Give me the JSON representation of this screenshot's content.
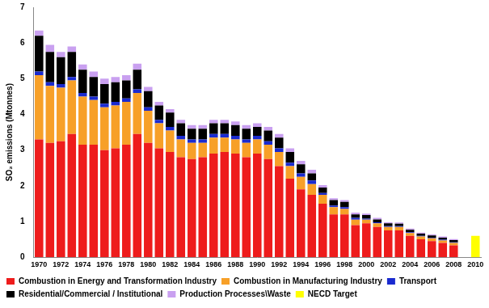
{
  "chart_data": {
    "type": "bar",
    "y_label": "SO₂ emissions (Mtonnes)",
    "categories": [
      "1970",
      null,
      "1972",
      null,
      "1974",
      null,
      "1976",
      null,
      "1978",
      null,
      "1980",
      null,
      "1982",
      null,
      "1984",
      null,
      "1986",
      null,
      "1988",
      null,
      "1990",
      null,
      "1992",
      null,
      "1994",
      null,
      "1996",
      null,
      "1998",
      null,
      "2000",
      null,
      "2002",
      null,
      "2004",
      null,
      "2006",
      null,
      "2008",
      null,
      "2010"
    ],
    "series": [
      {
        "name": "Combustion in Energy and Transformation Industry",
        "color": "#ee1c1c",
        "values": [
          3.3,
          3.2,
          3.25,
          3.45,
          3.15,
          3.15,
          3.0,
          3.05,
          3.15,
          3.45,
          3.2,
          3.05,
          2.95,
          2.8,
          2.75,
          2.8,
          2.9,
          2.95,
          2.9,
          2.8,
          2.9,
          2.75,
          2.55,
          2.2,
          1.9,
          1.75,
          1.5,
          1.2,
          1.2,
          0.9,
          0.95,
          0.85,
          0.75,
          0.75,
          0.6,
          0.5,
          0.45,
          0.4,
          0.33,
          null,
          null
        ]
      },
      {
        "name": "Combustion in Manufacturing Industry",
        "color": "#f7a028",
        "values": [
          1.8,
          1.6,
          1.5,
          1.5,
          1.35,
          1.25,
          1.2,
          1.2,
          1.2,
          1.15,
          0.9,
          0.7,
          0.6,
          0.5,
          0.45,
          0.4,
          0.45,
          0.4,
          0.4,
          0.4,
          0.4,
          0.4,
          0.4,
          0.35,
          0.35,
          0.3,
          0.25,
          0.2,
          0.15,
          0.15,
          0.1,
          0.1,
          0.1,
          0.1,
          0.08,
          0.08,
          0.08,
          0.07,
          0.07,
          null,
          null
        ]
      },
      {
        "name": "Transport",
        "color": "#1a2ad0",
        "values": [
          0.1,
          0.1,
          0.1,
          0.1,
          0.1,
          0.1,
          0.1,
          0.1,
          0.1,
          0.1,
          0.1,
          0.1,
          0.1,
          0.1,
          0.1,
          0.1,
          0.1,
          0.1,
          0.1,
          0.1,
          0.1,
          0.1,
          0.1,
          0.1,
          0.1,
          0.1,
          0.05,
          0.05,
          0.05,
          0.05,
          0.03,
          0.03,
          0.02,
          0.02,
          0.02,
          0.02,
          0.02,
          0.02,
          0.02,
          null,
          null
        ]
      },
      {
        "name": "Residential/Commercial / Institutional",
        "color": "#000000",
        "values": [
          1.0,
          0.85,
          0.75,
          0.7,
          0.65,
          0.55,
          0.55,
          0.55,
          0.5,
          0.55,
          0.45,
          0.4,
          0.4,
          0.35,
          0.3,
          0.3,
          0.3,
          0.3,
          0.3,
          0.3,
          0.25,
          0.3,
          0.3,
          0.3,
          0.25,
          0.2,
          0.15,
          0.15,
          0.15,
          0.1,
          0.1,
          0.08,
          0.08,
          0.07,
          0.07,
          0.06,
          0.06,
          0.06,
          0.06,
          null,
          null
        ]
      },
      {
        "name": "Production Processes\\Waste",
        "color": "#c9a0f0",
        "values": [
          0.15,
          0.2,
          0.15,
          0.15,
          0.15,
          0.15,
          0.15,
          0.15,
          0.15,
          0.17,
          0.12,
          0.1,
          0.1,
          0.1,
          0.1,
          0.1,
          0.1,
          0.1,
          0.1,
          0.1,
          0.1,
          0.1,
          0.1,
          0.1,
          0.1,
          0.1,
          0.07,
          0.05,
          0.05,
          0.05,
          0.04,
          0.04,
          0.03,
          0.03,
          0.03,
          0.03,
          0.03,
          0.03,
          0.03,
          null,
          null
        ]
      },
      {
        "name": "NECD Target",
        "color": "#ffff00",
        "values": [
          null,
          null,
          null,
          null,
          null,
          null,
          null,
          null,
          null,
          null,
          null,
          null,
          null,
          null,
          null,
          null,
          null,
          null,
          null,
          null,
          null,
          null,
          null,
          null,
          null,
          null,
          null,
          null,
          null,
          null,
          null,
          null,
          null,
          null,
          null,
          null,
          null,
          null,
          null,
          null,
          0.6
        ]
      }
    ],
    "ylim": [
      0,
      7
    ],
    "yticks": [
      0,
      1,
      2,
      3,
      4,
      5,
      6,
      7
    ],
    "stacked": true,
    "grid": false,
    "legend": "bottom"
  }
}
